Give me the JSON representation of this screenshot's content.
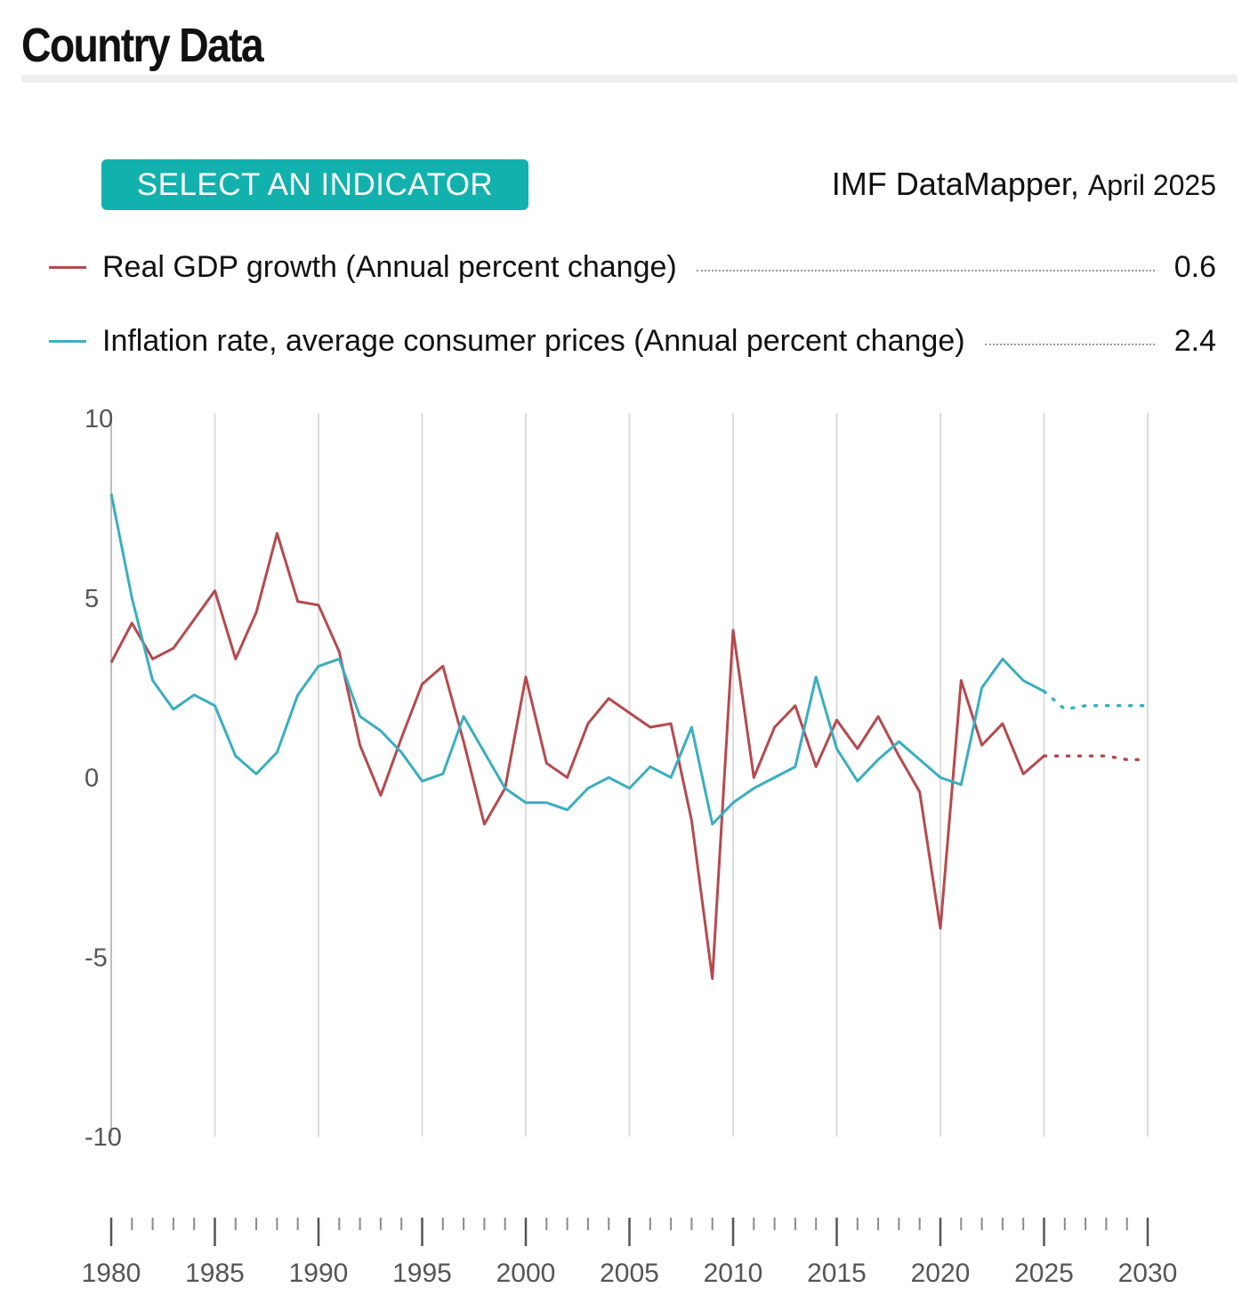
{
  "header": {
    "title": "Country Data"
  },
  "controls": {
    "select_indicator_label": "SELECT AN INDICATOR"
  },
  "source": {
    "name": "IMF DataMapper,",
    "date": "April 2025"
  },
  "legend": [
    {
      "label": "Real GDP growth (Annual percent change)",
      "value": "0.6",
      "color": "#b54a4e"
    },
    {
      "label": "Inflation rate, average consumer prices (Annual percent change)",
      "value": "2.4",
      "color": "#3aaebf"
    }
  ],
  "chart_data": {
    "type": "line",
    "xlim": [
      1980,
      2030
    ],
    "ylim": [
      -10,
      10
    ],
    "y_ticks": [
      "10",
      "5",
      "0",
      "-5",
      "-10"
    ],
    "x_tick_labels": [
      "1980",
      "1985",
      "1990",
      "1995",
      "2000",
      "2005",
      "2010",
      "2015",
      "2020",
      "2025",
      "2030"
    ],
    "grid": "vertical",
    "forecast_from": 2025,
    "x": [
      1980,
      1981,
      1982,
      1983,
      1984,
      1985,
      1986,
      1987,
      1988,
      1989,
      1990,
      1991,
      1992,
      1993,
      1994,
      1995,
      1996,
      1997,
      1998,
      1999,
      2000,
      2001,
      2002,
      2003,
      2004,
      2005,
      2006,
      2007,
      2008,
      2009,
      2010,
      2011,
      2012,
      2013,
      2014,
      2015,
      2016,
      2017,
      2018,
      2019,
      2020,
      2021,
      2022,
      2023,
      2024,
      2025,
      2026,
      2027,
      2028,
      2029,
      2030
    ],
    "series": [
      {
        "name": "Real GDP growth (Annual percent change)",
        "color": "#b54a4e",
        "values": [
          3.2,
          4.3,
          3.3,
          3.6,
          4.4,
          5.2,
          3.3,
          4.6,
          6.8,
          4.9,
          4.8,
          3.5,
          0.9,
          -0.5,
          1.1,
          2.6,
          3.1,
          1.0,
          -1.3,
          -0.3,
          2.8,
          0.4,
          0.0,
          1.5,
          2.2,
          1.8,
          1.4,
          1.5,
          -1.2,
          -5.6,
          4.1,
          0.0,
          1.4,
          2.0,
          0.3,
          1.6,
          0.8,
          1.7,
          0.6,
          -0.4,
          -4.2,
          2.7,
          0.9,
          1.5,
          0.1,
          0.6,
          0.6,
          0.6,
          0.6,
          0.5,
          0.5
        ]
      },
      {
        "name": "Inflation rate, average consumer prices (Annual percent change)",
        "color": "#3aaebf",
        "values": [
          7.9,
          5.0,
          2.7,
          1.9,
          2.3,
          2.0,
          0.6,
          0.1,
          0.7,
          2.3,
          3.1,
          3.3,
          1.7,
          1.3,
          0.7,
          -0.1,
          0.1,
          1.7,
          0.7,
          -0.3,
          -0.7,
          -0.7,
          -0.9,
          -0.3,
          0.0,
          -0.3,
          0.3,
          0.0,
          1.4,
          -1.3,
          -0.7,
          -0.3,
          0.0,
          0.3,
          2.8,
          0.8,
          -0.1,
          0.5,
          1.0,
          0.5,
          0.0,
          -0.2,
          2.5,
          3.3,
          2.7,
          2.4,
          1.9,
          2.0,
          2.0,
          2.0,
          2.0
        ]
      }
    ]
  }
}
